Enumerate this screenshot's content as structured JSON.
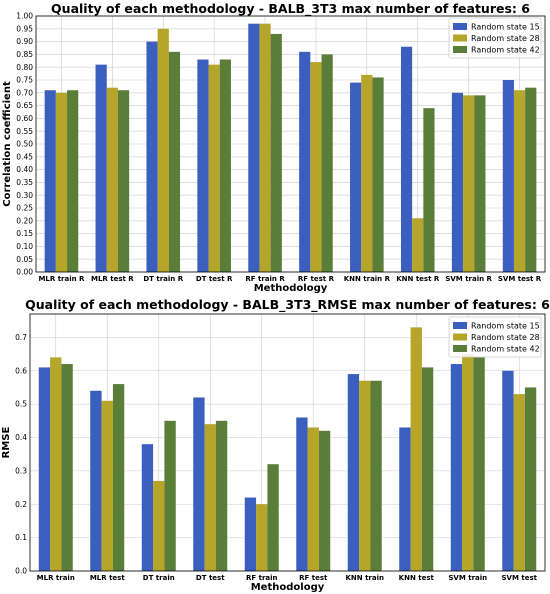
{
  "chart_data": [
    {
      "type": "bar",
      "title": "Quality of each methodology - BALB_3T3 max number of features: 6",
      "xlabel": "Methodology",
      "ylabel": "Correlation coefficient",
      "ylim": [
        0,
        1.0
      ],
      "yticks": [
        "0.00",
        "0.05",
        "0.10",
        "0.15",
        "0.20",
        "0.25",
        "0.30",
        "0.35",
        "0.40",
        "0.45",
        "0.50",
        "0.55",
        "0.60",
        "0.65",
        "0.70",
        "0.75",
        "0.80",
        "0.85",
        "0.90",
        "0.95",
        "1.00"
      ],
      "grid": true,
      "legend_position": "top-right",
      "categories": [
        "MLR train R",
        "MLR test R",
        "DT train R",
        "DT test R",
        "RF train R",
        "RF test R",
        "KNN train R",
        "KNN test R",
        "SVM train R",
        "SVM test R"
      ],
      "series": [
        {
          "name": "Random state 15",
          "color": "#3a5fbf",
          "values": [
            0.71,
            0.81,
            0.9,
            0.83,
            0.97,
            0.86,
            0.74,
            0.88,
            0.7,
            0.75
          ]
        },
        {
          "name": "Random state 28",
          "color": "#b5a52a",
          "values": [
            0.7,
            0.72,
            0.95,
            0.81,
            0.97,
            0.82,
            0.77,
            0.21,
            0.69,
            0.71
          ]
        },
        {
          "name": "Random state 42",
          "color": "#5a7d3a",
          "values": [
            0.71,
            0.71,
            0.86,
            0.83,
            0.93,
            0.85,
            0.76,
            0.64,
            0.69,
            0.72
          ]
        }
      ]
    },
    {
      "type": "bar",
      "title": "Quality of each methodology - BALB_3T3_RMSE max number of features: 6",
      "xlabel": "Methodology",
      "ylabel": "RMSE",
      "ylim": [
        0,
        0.77
      ],
      "yticks": [
        "0.0",
        "0.1",
        "0.2",
        "0.3",
        "0.4",
        "0.5",
        "0.6",
        "0.7"
      ],
      "grid": true,
      "legend_position": "top-right",
      "categories": [
        "MLR train",
        "MLR test",
        "DT train",
        "DT test",
        "RF train",
        "RF test",
        "KNN train",
        "KNN test",
        "SVM train",
        "SVM test"
      ],
      "series": [
        {
          "name": "Random state 15",
          "color": "#3a5fbf",
          "values": [
            0.61,
            0.54,
            0.38,
            0.52,
            0.22,
            0.46,
            0.59,
            0.43,
            0.62,
            0.6
          ]
        },
        {
          "name": "Random state 28",
          "color": "#b5a52a",
          "values": [
            0.64,
            0.51,
            0.27,
            0.44,
            0.2,
            0.43,
            0.57,
            0.73,
            0.65,
            0.53
          ]
        },
        {
          "name": "Random state 42",
          "color": "#5a7d3a",
          "values": [
            0.62,
            0.56,
            0.45,
            0.45,
            0.32,
            0.42,
            0.57,
            0.61,
            0.64,
            0.55
          ]
        }
      ]
    }
  ]
}
